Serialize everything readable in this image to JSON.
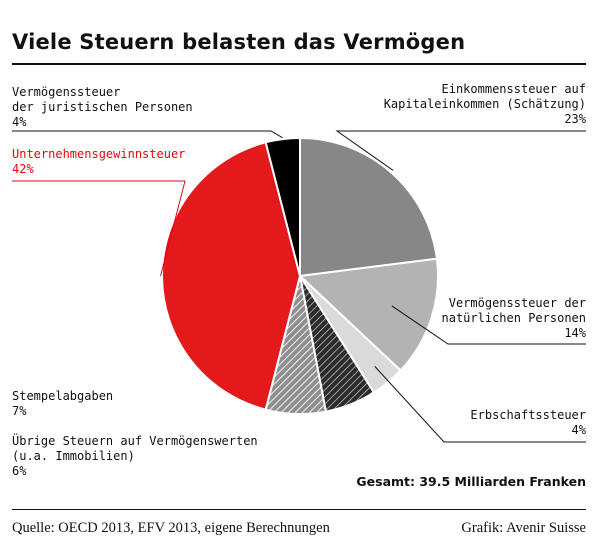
{
  "chart_data": {
    "type": "pie",
    "title": "Viele Steuern belasten das Vermögen",
    "slices": [
      {
        "lines": [
          "Einkommenssteuer auf",
          "Kapitaleinkommen (Schätzung)"
        ],
        "pct_label": "23%",
        "value": 23,
        "color": "#878787",
        "pattern": "solid"
      },
      {
        "lines": [
          "Vermögenssteuer der",
          "natürlichen Personen"
        ],
        "pct_label": "14%",
        "value": 14,
        "color": "#b3b3b3",
        "pattern": "solid"
      },
      {
        "lines": [
          "Erbschaftssteuer"
        ],
        "pct_label": "4%",
        "value": 4,
        "color": "#dadada",
        "pattern": "solid"
      },
      {
        "lines": [
          "Übrige Steuern auf Vermögenswerten",
          "(u.a. Immobilien)"
        ],
        "pct_label": "6%",
        "value": 6,
        "color": "#444444",
        "pattern": "hatch-dark"
      },
      {
        "lines": [
          "Stempelabgaben"
        ],
        "pct_label": "7%",
        "value": 7,
        "color": "#a8a8a8",
        "pattern": "hatch-light"
      },
      {
        "lines": [
          "Unternehmensgewinnsteuer"
        ],
        "pct_label": "42%",
        "value": 42,
        "color": "#e3191b",
        "pattern": "solid",
        "highlight": true
      },
      {
        "lines": [
          "Vermögenssteuer",
          "der juristischen Personen"
        ],
        "pct_label": "4%",
        "value": 4,
        "color": "#000000",
        "pattern": "solid"
      }
    ],
    "total": "Gesamt: 39.5 Milliarden Franken"
  },
  "footer": {
    "source": "Quelle: OECD 2013, EFV 2013, eigene Berechnungen",
    "credit": "Grafik: Avenir Suisse"
  }
}
